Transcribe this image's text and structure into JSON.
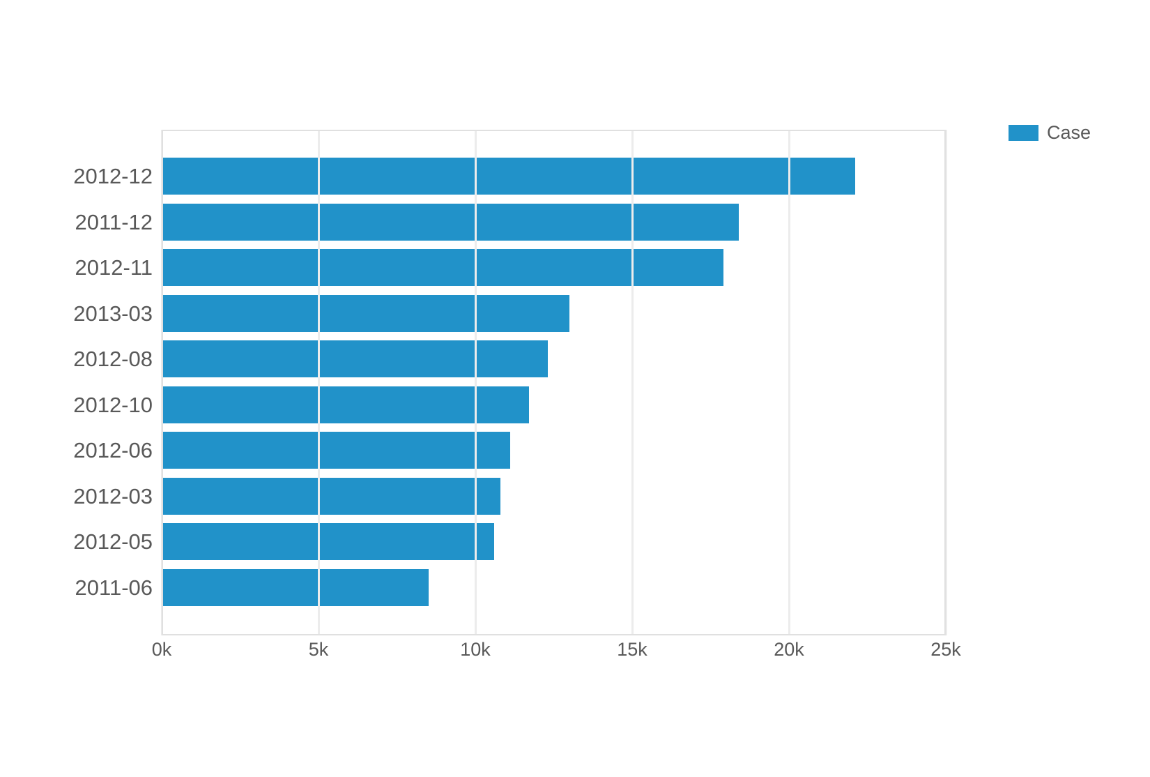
{
  "legend": {
    "label": "Case"
  },
  "colors": {
    "bar": "#2192c9",
    "axis_text": "#595959",
    "gridline": "#ececec",
    "border": "#e0e0e0",
    "background": "#ffffff"
  },
  "chart_data": {
    "type": "bar",
    "orientation": "horizontal",
    "title": "",
    "xlabel": "",
    "ylabel": "",
    "categories": [
      "2012-12",
      "2011-12",
      "2012-11",
      "2013-03",
      "2012-08",
      "2012-10",
      "2012-06",
      "2012-03",
      "2012-05",
      "2011-06"
    ],
    "series": [
      {
        "name": "Case",
        "values": [
          22100,
          18400,
          17900,
          13000,
          12300,
          11700,
          11100,
          10800,
          10600,
          8500
        ]
      }
    ],
    "xlim": [
      0,
      25000
    ],
    "x_ticks": [
      0,
      5000,
      10000,
      15000,
      20000,
      25000
    ],
    "x_tick_labels": [
      "0k",
      "5k",
      "10k",
      "15k",
      "20k",
      "25k"
    ],
    "grid": true,
    "legend_position": "top-right"
  }
}
